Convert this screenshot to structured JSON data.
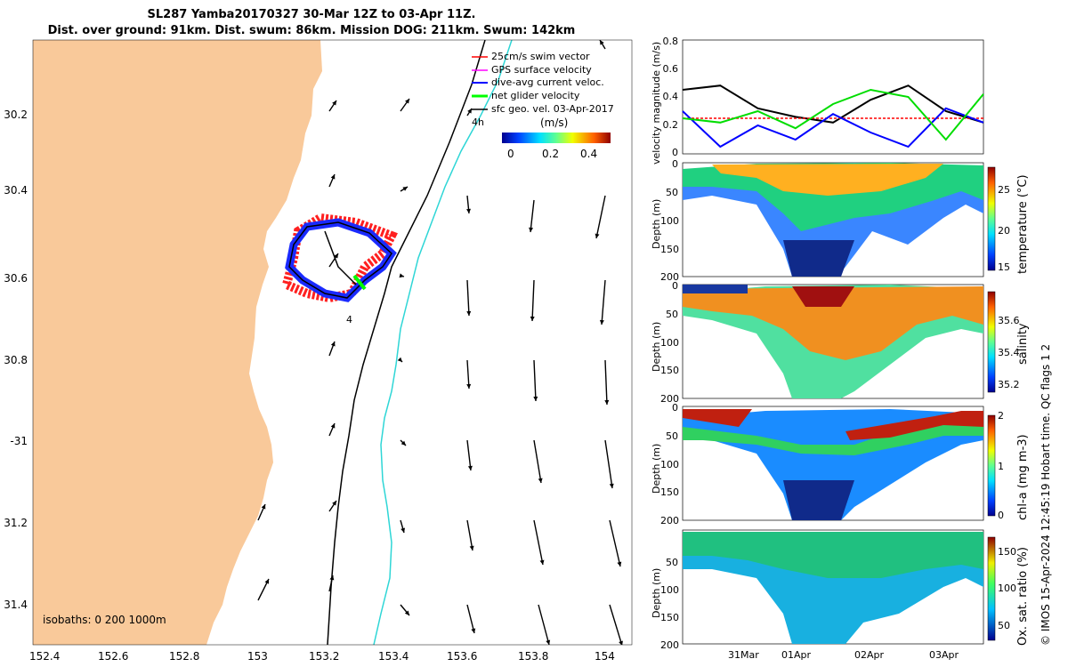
{
  "title": {
    "line1": "SL287 Yamba20170327 30-Mar 12Z to 03-Apr 11Z.",
    "line2": "Dist. over ground: 91km. Dist. swum: 86km. Mission DOG: 211km. Swum: 142km"
  },
  "map": {
    "lon_ticks": [
      "152.4",
      "152.6",
      "152.8",
      "153",
      "153.2",
      "153.4",
      "153.6",
      "153.8",
      "154"
    ],
    "lat_ticks": [
      "30.2",
      "30.4",
      "30.6",
      "30.8",
      "-31",
      "31.2",
      "31.4"
    ],
    "isobaths_label": "isobaths: 0   200  1000m",
    "legend": [
      {
        "label": "25cm/s swim vector",
        "color": "#ff0000"
      },
      {
        "label": "GPS surface velocity",
        "color": "#ff00ff"
      },
      {
        "label": "dive-avg current veloc.",
        "color": "#0000ff"
      },
      {
        "label": "net glider velocity",
        "color": "#00ff00"
      },
      {
        "label": "sfc geo. vel. 03-Apr-2017",
        "color": "#000000"
      }
    ],
    "colorbar": {
      "unit": "(m/s)",
      "ticks": [
        "0",
        "0.2",
        "0.4"
      ]
    },
    "annotations": {
      "a": "4h",
      "b": "4"
    },
    "colors": {
      "land": "#f9c99a",
      "isobath200": "#000000",
      "isobath1000": "#2ed6d6"
    }
  },
  "chart_data": [
    {
      "type": "line",
      "ylabel": "velocity magnitude (m/s)",
      "ylim": [
        0,
        0.8
      ],
      "yticks": [
        "0",
        "0.2",
        "0.4",
        "0.6",
        "0.8"
      ],
      "x": [
        0,
        0.5,
        1,
        1.5,
        2,
        2.5,
        3,
        3.5,
        4
      ],
      "series": [
        {
          "color": "#000000",
          "values": [
            0.45,
            0.48,
            0.32,
            0.26,
            0.22,
            0.38,
            0.48,
            0.3,
            0.22
          ]
        },
        {
          "color": "#ff0000",
          "values": [
            0.25,
            0.25,
            0.25,
            0.25,
            0.25,
            0.25,
            0.25,
            0.25,
            0.25
          ]
        },
        {
          "color": "#0000ff",
          "values": [
            0.3,
            0.05,
            0.2,
            0.1,
            0.28,
            0.15,
            0.05,
            0.32,
            0.22
          ]
        },
        {
          "color": "#00dd00",
          "values": [
            0.25,
            0.22,
            0.3,
            0.18,
            0.35,
            0.45,
            0.4,
            0.1,
            0.42
          ]
        }
      ]
    },
    {
      "type": "heatmap",
      "ylabel": "Depth (m)",
      "yticks": [
        "0",
        "50",
        "100",
        "150",
        "200"
      ],
      "cbar_label": "temperature (°C)",
      "cbar_ticks": [
        "25",
        "20",
        "15"
      ]
    },
    {
      "type": "heatmap",
      "ylabel": "Depth (m)",
      "yticks": [
        "0",
        "50",
        "100",
        "150",
        "200"
      ],
      "cbar_label": "salinity",
      "cbar_ticks": [
        "35.6",
        "35.4",
        "35.2"
      ]
    },
    {
      "type": "heatmap",
      "ylabel": "Depth (m)",
      "yticks": [
        "0",
        "50",
        "100",
        "150",
        "200"
      ],
      "cbar_label": "chl-a (mg m-3)",
      "cbar_ticks": [
        "2",
        "1",
        "0"
      ]
    },
    {
      "type": "heatmap",
      "ylabel": "Depth (m)",
      "yticks": [
        "50",
        "100",
        "150",
        "200"
      ],
      "cbar_label": "Ox. sat. ratio (%)",
      "cbar_ticks": [
        "150",
        "100",
        "50"
      ],
      "x_ticks": [
        "31Mar",
        "01Apr",
        "02Apr",
        "03Apr"
      ]
    }
  ],
  "footer": "© IMOS 15-Apr-2024 12:45:19 Hobart time. QC flags 1  2"
}
